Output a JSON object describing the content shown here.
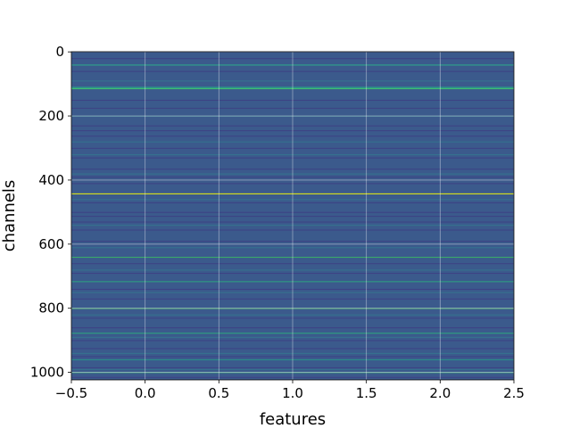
{
  "chart_data": {
    "type": "heatmap",
    "title": "",
    "xlabel": "features",
    "ylabel": "channels",
    "xlim": [
      -0.5,
      2.5
    ],
    "ylim": [
      1023.5,
      -0.5
    ],
    "x_ticks": [
      -0.5,
      0.0,
      0.5,
      1.0,
      1.5,
      2.0,
      2.5
    ],
    "x_tick_labels": [
      "−0.5",
      "0.0",
      "0.5",
      "1.0",
      "1.5",
      "2.0",
      "2.5"
    ],
    "y_ticks": [
      0,
      200,
      400,
      600,
      800,
      1000
    ],
    "y_tick_labels": [
      "0",
      "200",
      "400",
      "600",
      "800",
      "1000"
    ],
    "grid": true,
    "colormap": "viridis",
    "n_rows": 1024,
    "n_cols": 3,
    "base_color": "#3b5a8c",
    "highlight_rows": [
      {
        "row": 40,
        "color": "#2fa58a"
      },
      {
        "row": 110,
        "color": "#26b48a"
      },
      {
        "row": 114,
        "color": "#3fbf6f"
      },
      {
        "row": 442,
        "color": "#dde318"
      },
      {
        "row": 640,
        "color": "#3aa86a"
      },
      {
        "row": 716,
        "color": "#2f9e80"
      },
      {
        "row": 800,
        "color": "#43a96a"
      },
      {
        "row": 877,
        "color": "#2ea180"
      },
      {
        "row": 960,
        "color": "#2a8c88"
      },
      {
        "row": 1000,
        "color": "#3da07a"
      }
    ],
    "dark_rows": [
      20,
      60,
      150,
      175,
      230,
      245,
      262,
      300,
      330,
      365,
      390,
      410,
      470,
      500,
      512,
      530,
      555,
      590,
      660,
      690,
      740,
      770,
      830,
      860,
      900,
      925,
      950,
      985,
      1015
    ],
    "light_rows": [
      90,
      200,
      280,
      320,
      380,
      460,
      540,
      610,
      680,
      750,
      820,
      890,
      940,
      990
    ]
  }
}
